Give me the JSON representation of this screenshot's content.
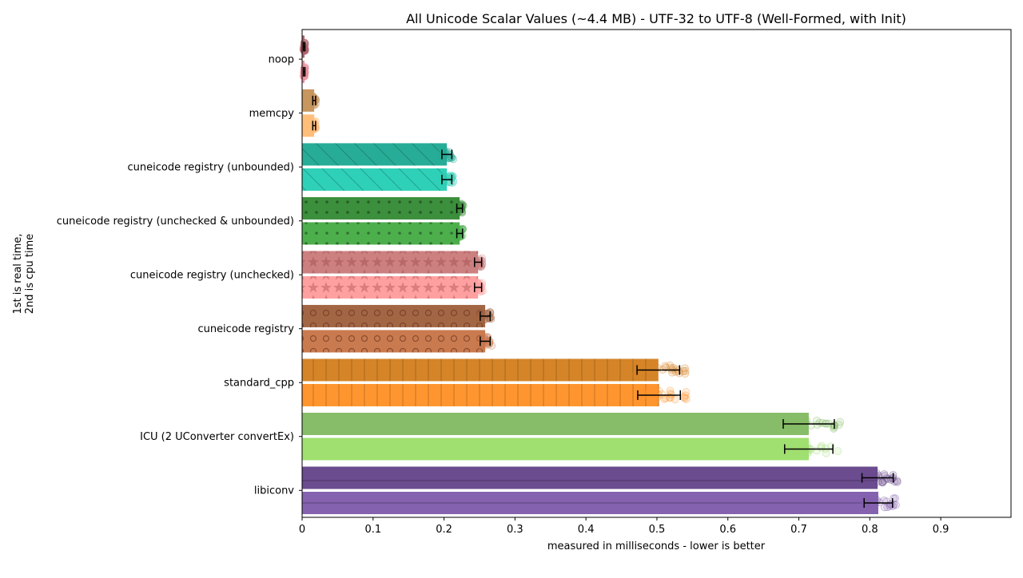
{
  "chart_data": {
    "type": "bar",
    "orientation": "horizontal",
    "title": "All Unicode Scalar Values (~4.4 MB) - UTF-32 to UTF-8 (Well-Formed, with Init)",
    "xlabel": "measured in milliseconds - lower is better",
    "ylabel": "1st is real time,\n2nd is cpu time",
    "xlim": [
      0,
      0.999
    ],
    "xticks": [
      "0",
      "0.1",
      "0.2",
      "0.3",
      "0.4",
      "0.5",
      "0.6",
      "0.7",
      "0.8",
      "0.9"
    ],
    "grid": false,
    "legend": "none",
    "categories": [
      {
        "name": "noop",
        "colors": [
          "#b0646c",
          "#e8909b"
        ],
        "hatch": "none",
        "values": [
          0.003,
          0.003
        ],
        "err": [
          0.001,
          0.001
        ]
      },
      {
        "name": "memcpy",
        "colors": [
          "#c8965f",
          "#ffbf7a"
        ],
        "hatch": "none",
        "values": [
          0.017,
          0.017
        ],
        "err": [
          0.002,
          0.002
        ]
      },
      {
        "name": "cuneicode registry (unbounded)",
        "colors": [
          "#27ad97",
          "#2ed1b8"
        ],
        "hatch": "diag",
        "values": [
          0.204,
          0.204
        ],
        "err": [
          0.007,
          0.007
        ]
      },
      {
        "name": "cuneicode registry (unchecked & unbounded)",
        "colors": [
          "#3c8f3c",
          "#4caf4c"
        ],
        "hatch": "dots",
        "values": [
          0.222,
          0.222
        ],
        "err": [
          0.004,
          0.004
        ]
      },
      {
        "name": "cuneicode registry (unchecked)",
        "colors": [
          "#cc8080",
          "#ffa0a0"
        ],
        "hatch": "stars",
        "values": [
          0.248,
          0.248
        ],
        "err": [
          0.005,
          0.005
        ]
      },
      {
        "name": "cuneicode registry",
        "colors": [
          "#a36645",
          "#c97a4f"
        ],
        "hatch": "circles",
        "values": [
          0.258,
          0.258
        ],
        "err": [
          0.007,
          0.007
        ]
      },
      {
        "name": "standard_cpp",
        "colors": [
          "#d68428",
          "#ff952e"
        ],
        "hatch": "vlines",
        "values": [
          0.502,
          0.503
        ],
        "err": [
          0.03,
          0.03
        ]
      },
      {
        "name": "ICU (2 UConverter convertEx)",
        "colors": [
          "#87bd68",
          "#a0e070"
        ],
        "hatch": "none",
        "values": [
          0.714,
          0.714
        ],
        "err": [
          0.036,
          0.034
        ]
      },
      {
        "name": "libiconv",
        "colors": [
          "#6b4c8f",
          "#8462b0"
        ],
        "hatch": "hline",
        "values": [
          0.811,
          0.812
        ],
        "err": [
          0.022,
          0.02
        ]
      }
    ]
  }
}
